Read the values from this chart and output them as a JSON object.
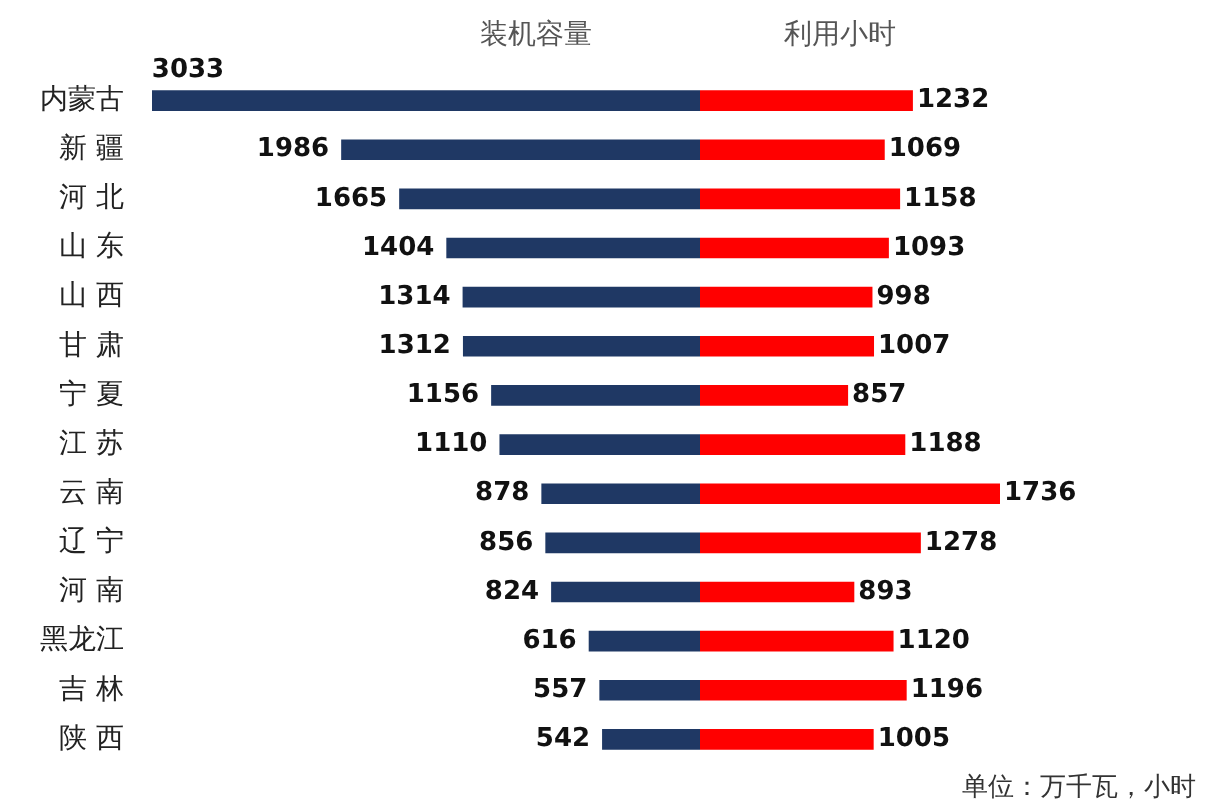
{
  "chart_data": [
    {
      "type": "bar",
      "orientation": "horizontal",
      "title": "装机容量",
      "categories": [
        "内蒙古",
        "新 疆",
        "河 北",
        "山 东",
        "山 西",
        "甘 肃",
        "宁 夏",
        "江 苏",
        "云 南",
        "辽 宁",
        "河 南",
        "黑龙江",
        "吉 林",
        "陕 西"
      ],
      "series": [
        {
          "color": "#1f3864",
          "values": [
            3033,
            1986,
            1665,
            1404,
            1314,
            1312,
            1156,
            1110,
            878,
            856,
            824,
            616,
            557,
            542
          ]
        }
      ],
      "xlim": [
        3033,
        0
      ],
      "tick_labels": "y",
      "data_labels": true
    },
    {
      "type": "bar",
      "orientation": "horizontal",
      "title": "利用小时",
      "categories": [
        null,
        null,
        null,
        null,
        null,
        null,
        null,
        null,
        null,
        null,
        null,
        null,
        null,
        null
      ],
      "series": [
        {
          "color": "#ff0000",
          "values": [
            1232,
            1069,
            1158,
            1093,
            998,
            1007,
            857,
            1188,
            1736,
            1278,
            893,
            1120,
            1196,
            1005
          ]
        }
      ],
      "xlim": [
        0,
        1736
      ],
      "tick_labels": false,
      "data_labels": true,
      "annotations": [
        "单位：万千瓦，小时"
      ]
    }
  ]
}
